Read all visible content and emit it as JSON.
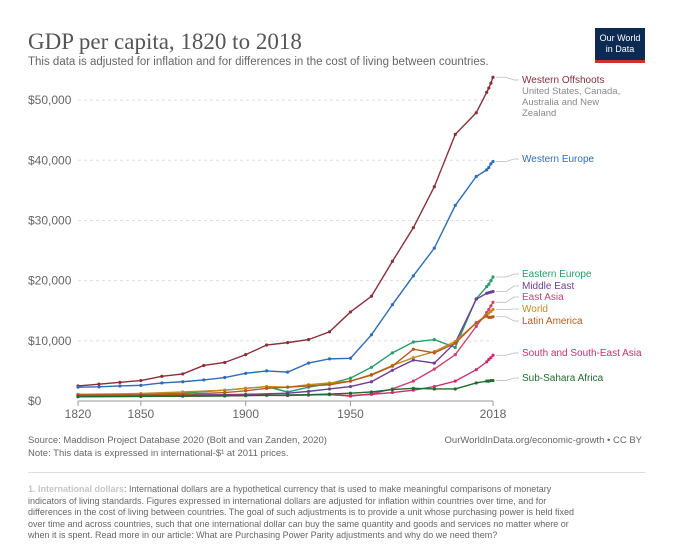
{
  "header": {
    "title": "GDP per capita, 1820 to 2018",
    "subtitle": "This data is adjusted for inflation and for differences in the cost of living between countries.",
    "logo_line1": "Our World",
    "logo_line2": "in Data"
  },
  "chart_data": {
    "type": "line",
    "title": "GDP per capita, 1820 to 2018",
    "subtitle": "This data is adjusted for inflation and for differences in the cost of living between countries.",
    "xlim": [
      1820,
      2018
    ],
    "ylim": [
      0,
      55000
    ],
    "x_ticks": [
      1820,
      1850,
      1900,
      1950,
      2018
    ],
    "x_tick_labels": [
      "1820",
      "1850",
      "1900",
      "1950",
      "2018"
    ],
    "y_ticks": [
      0,
      10000,
      20000,
      30000,
      40000,
      50000
    ],
    "y_tick_labels": [
      "$0",
      "$10,000",
      "$20,000",
      "$30,000",
      "$40,000",
      "$50,000"
    ],
    "grid": "horizontal dashed",
    "legend": "right, line-end labels",
    "series": [
      {
        "name": "Western Offshoots",
        "color": "#883039",
        "sublabel": [
          "United States, Canada,",
          "Australia and New",
          "Zealand"
        ],
        "points": [
          [
            1820,
            2500
          ],
          [
            1830,
            2800
          ],
          [
            1840,
            3100
          ],
          [
            1850,
            3400
          ],
          [
            1860,
            4100
          ],
          [
            1870,
            4500
          ],
          [
            1880,
            5900
          ],
          [
            1890,
            6400
          ],
          [
            1900,
            7700
          ],
          [
            1910,
            9300
          ],
          [
            1920,
            9700
          ],
          [
            1930,
            10200
          ],
          [
            1940,
            11500
          ],
          [
            1950,
            14800
          ],
          [
            1960,
            17400
          ],
          [
            1970,
            23200
          ],
          [
            1980,
            28800
          ],
          [
            1990,
            35600
          ],
          [
            2000,
            44300
          ],
          [
            2010,
            47900
          ],
          [
            2015,
            51300
          ],
          [
            2016,
            52000
          ],
          [
            2017,
            52800
          ],
          [
            2018,
            53800
          ]
        ]
      },
      {
        "name": "Western Europe",
        "color": "#2f6db5",
        "points": [
          [
            1820,
            2300
          ],
          [
            1830,
            2350
          ],
          [
            1840,
            2500
          ],
          [
            1850,
            2600
          ],
          [
            1860,
            3000
          ],
          [
            1870,
            3200
          ],
          [
            1880,
            3500
          ],
          [
            1890,
            3900
          ],
          [
            1900,
            4600
          ],
          [
            1910,
            5000
          ],
          [
            1920,
            4800
          ],
          [
            1930,
            6300
          ],
          [
            1940,
            7000
          ],
          [
            1950,
            7100
          ],
          [
            1960,
            11000
          ],
          [
            1970,
            16000
          ],
          [
            1980,
            20800
          ],
          [
            1990,
            25400
          ],
          [
            2000,
            32500
          ],
          [
            2010,
            37300
          ],
          [
            2015,
            38400
          ],
          [
            2016,
            38800
          ],
          [
            2017,
            39400
          ],
          [
            2018,
            39800
          ]
        ]
      },
      {
        "name": "Eastern Europe",
        "color": "#2a9b6b",
        "points": [
          [
            1820,
            1000
          ],
          [
            1850,
            1100
          ],
          [
            1870,
            1300
          ],
          [
            1890,
            1800
          ],
          [
            1900,
            2100
          ],
          [
            1910,
            2400
          ],
          [
            1920,
            1500
          ],
          [
            1930,
            2300
          ],
          [
            1940,
            2900
          ],
          [
            1950,
            3800
          ],
          [
            1960,
            5600
          ],
          [
            1970,
            8000
          ],
          [
            1980,
            9800
          ],
          [
            1990,
            10200
          ],
          [
            2000,
            8900
          ],
          [
            2010,
            17000
          ],
          [
            2015,
            19000
          ],
          [
            2016,
            19400
          ],
          [
            2017,
            20000
          ],
          [
            2018,
            20600
          ]
        ]
      },
      {
        "name": "Middle East",
        "color": "#6f3e96",
        "points": [
          [
            1820,
            900
          ],
          [
            1850,
            950
          ],
          [
            1870,
            1000
          ],
          [
            1890,
            1050
          ],
          [
            1900,
            1100
          ],
          [
            1920,
            1300
          ],
          [
            1930,
            1600
          ],
          [
            1940,
            2000
          ],
          [
            1950,
            2400
          ],
          [
            1960,
            3200
          ],
          [
            1970,
            5100
          ],
          [
            1980,
            6800
          ],
          [
            1990,
            6300
          ],
          [
            2000,
            9700
          ],
          [
            2010,
            16900
          ],
          [
            2015,
            17900
          ],
          [
            2016,
            18000
          ],
          [
            2017,
            18100
          ],
          [
            2018,
            18200
          ]
        ]
      },
      {
        "name": "East Asia",
        "color": "#c8436d",
        "points": [
          [
            1820,
            900
          ],
          [
            1850,
            850
          ],
          [
            1870,
            800
          ],
          [
            1890,
            850
          ],
          [
            1900,
            900
          ],
          [
            1910,
            950
          ],
          [
            1920,
            900
          ],
          [
            1930,
            1000
          ],
          [
            1940,
            1100
          ],
          [
            1950,
            800
          ],
          [
            1960,
            1200
          ],
          [
            1970,
            2000
          ],
          [
            1980,
            3300
          ],
          [
            1990,
            5300
          ],
          [
            2000,
            7700
          ],
          [
            2010,
            12400
          ],
          [
            2015,
            14700
          ],
          [
            2016,
            15200
          ],
          [
            2017,
            15800
          ],
          [
            2018,
            16400
          ]
        ]
      },
      {
        "name": "World",
        "color": "#c48a1c",
        "points": [
          [
            1820,
            1100
          ],
          [
            1850,
            1250
          ],
          [
            1870,
            1500
          ],
          [
            1890,
            1800
          ],
          [
            1900,
            2100
          ],
          [
            1910,
            2400
          ],
          [
            1920,
            2300
          ],
          [
            1930,
            2700
          ],
          [
            1940,
            3000
          ],
          [
            1950,
            3300
          ],
          [
            1960,
            4400
          ],
          [
            1970,
            5900
          ],
          [
            1980,
            7200
          ],
          [
            1990,
            8200
          ],
          [
            2000,
            9900
          ],
          [
            2010,
            13000
          ],
          [
            2015,
            14300
          ],
          [
            2016,
            14600
          ],
          [
            2017,
            14900
          ],
          [
            2018,
            15200
          ]
        ]
      },
      {
        "name": "Latin America",
        "color": "#b55b1e",
        "points": [
          [
            1820,
            1000
          ],
          [
            1850,
            1000
          ],
          [
            1870,
            1100
          ],
          [
            1890,
            1400
          ],
          [
            1900,
            1700
          ],
          [
            1910,
            2100
          ],
          [
            1920,
            2300
          ],
          [
            1930,
            2500
          ],
          [
            1940,
            2700
          ],
          [
            1950,
            3300
          ],
          [
            1960,
            4300
          ],
          [
            1970,
            5800
          ],
          [
            1980,
            8600
          ],
          [
            1990,
            8000
          ],
          [
            2000,
            9600
          ],
          [
            2010,
            13000
          ],
          [
            2015,
            14100
          ],
          [
            2016,
            13900
          ],
          [
            2017,
            13900
          ],
          [
            2018,
            14000
          ]
        ]
      },
      {
        "name": "South and South-East Asia",
        "color": "#cf2b6f",
        "points": [
          [
            1820,
            900
          ],
          [
            1850,
            900
          ],
          [
            1870,
            850
          ],
          [
            1890,
            900
          ],
          [
            1900,
            950
          ],
          [
            1910,
            1000
          ],
          [
            1920,
            950
          ],
          [
            1930,
            1000
          ],
          [
            1940,
            1050
          ],
          [
            1950,
            900
          ],
          [
            1960,
            1100
          ],
          [
            1970,
            1400
          ],
          [
            1980,
            1800
          ],
          [
            1990,
            2400
          ],
          [
            2000,
            3300
          ],
          [
            2010,
            5200
          ],
          [
            2015,
            6500
          ],
          [
            2016,
            6900
          ],
          [
            2017,
            7200
          ],
          [
            2018,
            7600
          ]
        ]
      },
      {
        "name": "Sub-Sahara Africa",
        "color": "#1e6b2b",
        "points": [
          [
            1820,
            700
          ],
          [
            1850,
            750
          ],
          [
            1870,
            800
          ],
          [
            1890,
            850
          ],
          [
            1900,
            900
          ],
          [
            1910,
            950
          ],
          [
            1920,
            1000
          ],
          [
            1930,
            1050
          ],
          [
            1940,
            1150
          ],
          [
            1950,
            1300
          ],
          [
            1960,
            1500
          ],
          [
            1970,
            1900
          ],
          [
            1980,
            2100
          ],
          [
            1990,
            2000
          ],
          [
            2000,
            2000
          ],
          [
            2010,
            3000
          ],
          [
            2015,
            3300
          ],
          [
            2016,
            3300
          ],
          [
            2017,
            3400
          ],
          [
            2018,
            3400
          ]
        ]
      }
    ]
  },
  "footer": {
    "source": "Source: Maddison Project Database 2020 (Bolt and van Zanden, 2020)",
    "note": "Note: This data is expressed in international-$¹ at 2011 prices.",
    "credit": "OurWorldInData.org/economic-growth • CC BY",
    "footnote_title": "1. International dollars",
    "footnote_text": ": International dollars are a hypothetical currency that is used to make meaningful comparisons of monetary indicators of living standards. Figures expressed in international dollars are adjusted for inflation within countries over time, and for differences in the cost of living between countries. The goal of such adjustments is to provide a unit whose purchasing power is held fixed over time and across countries, such that one international dollar can buy the same quantity and goods and services no matter where or when it is spent. Read more in our article: What are Purchasing Power Parity adjustments and why do we need them?"
  }
}
